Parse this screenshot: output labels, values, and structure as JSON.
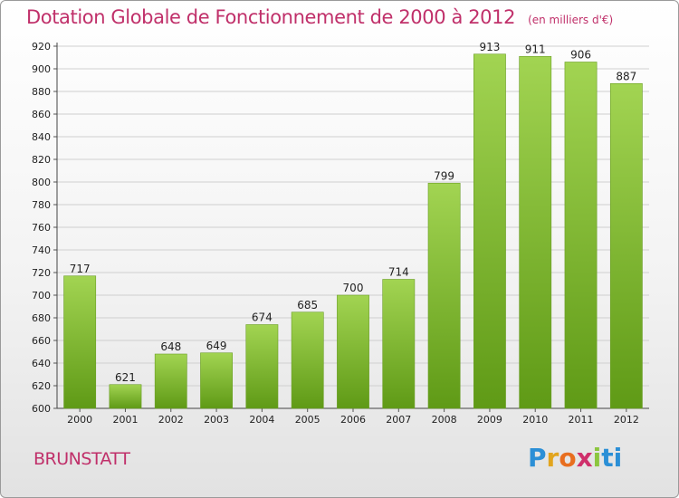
{
  "header": {
    "title": "Dotation Globale de Fonctionnement de 2000 à 2012",
    "unit": "(en milliers d'€)"
  },
  "footer": {
    "commune": "BRUNSTATT",
    "logo_letters": [
      "P",
      "r",
      "o",
      "x",
      "i",
      "ti"
    ]
  },
  "colors": {
    "bar_top": "#a2d452",
    "bar_bottom": "#5f9a16",
    "title": "#c0306a",
    "grid": "#cfcfcf"
  },
  "chart_data": {
    "type": "bar",
    "title": "Dotation Globale de Fonctionnement de 2000 à 2012",
    "xlabel": "",
    "ylabel": "",
    "categories": [
      "2000",
      "2001",
      "2002",
      "2003",
      "2004",
      "2005",
      "2006",
      "2007",
      "2008",
      "2009",
      "2010",
      "2011",
      "2012"
    ],
    "values": [
      717,
      621,
      648,
      649,
      674,
      685,
      700,
      714,
      799,
      913,
      911,
      906,
      887
    ],
    "ylim": [
      600,
      920
    ],
    "yticks": [
      600,
      620,
      640,
      660,
      680,
      700,
      720,
      740,
      760,
      780,
      800,
      820,
      840,
      860,
      880,
      900,
      920
    ],
    "grid": true,
    "legend": "none"
  }
}
